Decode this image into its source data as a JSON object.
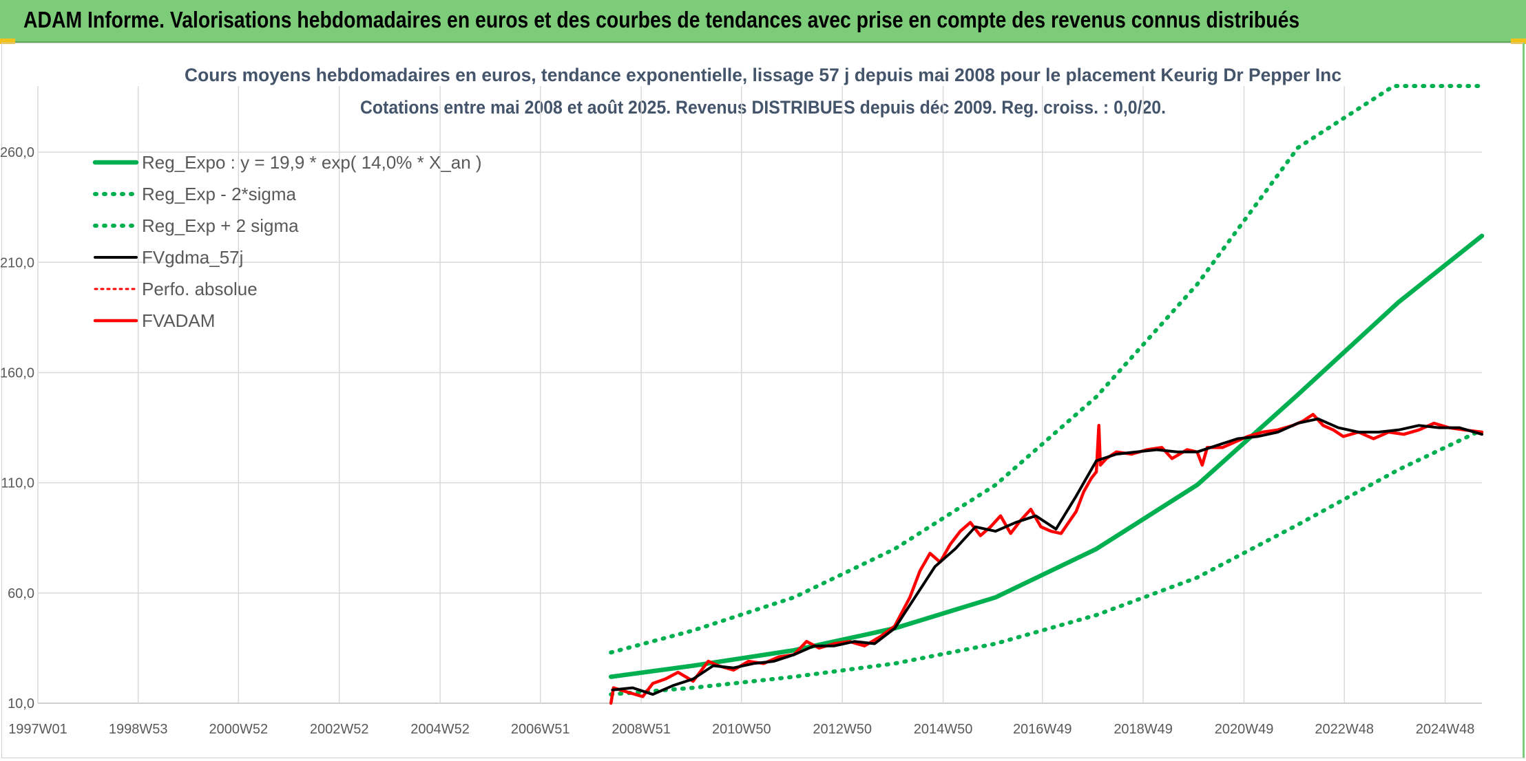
{
  "header": {
    "title": "ADAM Informe. Valorisations hebdomadaires en euros et des courbes de tendances avec prise en compte des revenus connus distribués"
  },
  "chart_data": {
    "type": "line",
    "title": "Cours moyens hebdomadaires en euros, tendance exponentielle, lissage 57 j depuis mai 2008 pour le placement Keurig Dr Pepper Inc",
    "subtitle": "Cotations entre mai 2008 et août 2025. Revenus DISTRIBUES depuis déc 2009. Reg. croiss. : 0,0/20.",
    "xlabel": "",
    "ylabel": "",
    "x_range": [
      1997.0,
      2025.65
    ],
    "ylim": [
      10,
      290
    ],
    "y_ticks": [
      10,
      60,
      110,
      160,
      210,
      260
    ],
    "y_tick_labels": [
      "10,0",
      "60,0",
      "110,0",
      "160,0",
      "210,0",
      "260,0"
    ],
    "x_ticks": [
      1997.0,
      1998.99,
      2000.98,
      2002.98,
      2004.98,
      2006.97,
      2008.97,
      2010.96,
      2012.96,
      2014.96,
      2016.93,
      2018.93,
      2020.93,
      2022.92,
      2024.92
    ],
    "x_tick_labels": [
      "1997W01",
      "1998W53",
      "2000W52",
      "2002W52",
      "2004W52",
      "2006W51",
      "2008W51",
      "2010W50",
      "2012W50",
      "2014W50",
      "2016W49",
      "2018W49",
      "2020W49",
      "2022W48",
      "2024W48"
    ],
    "grid": true,
    "legend_position": "top-left",
    "colors": {
      "trend": "#00b050",
      "adam": "#ff0000",
      "smooth": "#000000"
    },
    "series": [
      {
        "name": "Reg_Expo : y = 19,9 * exp( 14,0% *  X_an )",
        "style": "solid",
        "color": "#00b050",
        "x": [
          2008.37,
          2010,
          2012,
          2014,
          2016,
          2018,
          2020,
          2022,
          2024,
          2025.65
        ],
        "y": [
          22,
          27,
          34,
          44,
          58,
          80,
          109,
          150,
          192,
          222
        ]
      },
      {
        "name": "Reg_Exp - 2*sigma",
        "style": "dotted",
        "color": "#00b050",
        "x": [
          2008.37,
          2010,
          2012,
          2014,
          2016,
          2018,
          2020,
          2022,
          2024,
          2025.65
        ],
        "y": [
          14,
          17,
          22,
          28,
          37,
          50,
          67,
          91,
          116,
          134
        ]
      },
      {
        "name": "Reg_Exp + 2 sigma",
        "style": "dotted",
        "color": "#00b050",
        "x": [
          2008.37,
          2010,
          2012,
          2014,
          2016,
          2018,
          2020,
          2022,
          2023.9,
          2025.65
        ],
        "y": [
          33,
          43,
          58,
          80,
          109,
          149,
          200,
          262,
          290,
          290
        ]
      },
      {
        "name": "FVgdma_57j",
        "style": "solid",
        "color": "#000000",
        "x": [
          2008.4,
          2008.8,
          2009.2,
          2009.6,
          2010.0,
          2010.4,
          2010.8,
          2011.2,
          2011.6,
          2012.0,
          2012.4,
          2012.8,
          2013.2,
          2013.6,
          2014.0,
          2014.4,
          2014.8,
          2015.2,
          2015.6,
          2016.0,
          2016.4,
          2016.8,
          2017.2,
          2017.6,
          2018.0,
          2018.4,
          2018.8,
          2019.2,
          2019.6,
          2020.0,
          2020.4,
          2020.8,
          2021.2,
          2021.6,
          2022.0,
          2022.4,
          2022.8,
          2023.2,
          2023.6,
          2024.0,
          2024.4,
          2024.8,
          2025.2,
          2025.65
        ],
        "y": [
          16,
          17,
          14,
          18,
          21,
          27,
          26,
          28,
          29,
          32,
          36,
          36,
          38,
          37,
          44,
          58,
          72,
          80,
          90,
          88,
          92,
          95,
          89,
          104,
          120,
          123,
          124,
          125,
          124,
          124,
          127,
          130,
          131,
          133,
          137,
          139,
          135,
          133,
          133,
          134,
          136,
          135,
          135,
          132
        ]
      },
      {
        "name": "Perfo. absolue",
        "style": "dotted",
        "color": "#ff0000",
        "x": [
          2008.4,
          2008.8,
          2009.2,
          2009.6,
          2010.0,
          2010.4,
          2010.8,
          2011.2,
          2011.6,
          2012.0,
          2012.4,
          2012.8,
          2013.2,
          2013.6,
          2014.0,
          2014.4,
          2014.8,
          2015.2,
          2015.6,
          2016.0,
          2016.4,
          2016.8,
          2017.2,
          2017.6,
          2018.0,
          2018.4,
          2018.8,
          2019.2,
          2019.6,
          2020.0,
          2020.4,
          2020.8,
          2021.2,
          2021.6,
          2022.0,
          2022.4,
          2022.8,
          2023.2,
          2023.6,
          2024.0,
          2024.4,
          2024.8,
          2025.2,
          2025.65
        ],
        "y": [
          16,
          17,
          14,
          18,
          21,
          27,
          26,
          28,
          29,
          32,
          36,
          36,
          38,
          37,
          44,
          58,
          72,
          80,
          90,
          88,
          92,
          95,
          89,
          104,
          120,
          123,
          124,
          125,
          124,
          124,
          127,
          130,
          131,
          133,
          137,
          139,
          135,
          133,
          133,
          134,
          136,
          135,
          135,
          132
        ]
      },
      {
        "name": "FVADAM",
        "style": "solid",
        "color": "#ff0000",
        "x": [
          2008.37,
          2008.42,
          2008.7,
          2009.0,
          2009.2,
          2009.45,
          2009.7,
          2010.0,
          2010.3,
          2010.5,
          2010.8,
          2011.1,
          2011.4,
          2011.7,
          2012.0,
          2012.25,
          2012.5,
          2012.8,
          2013.1,
          2013.4,
          2013.7,
          2014.0,
          2014.3,
          2014.5,
          2014.7,
          2014.9,
          2015.1,
          2015.3,
          2015.5,
          2015.7,
          2015.9,
          2016.1,
          2016.3,
          2016.5,
          2016.7,
          2016.9,
          2017.1,
          2017.3,
          2017.6,
          2017.75,
          2017.9,
          2018.0,
          2018.05,
          2018.08,
          2018.2,
          2018.4,
          2018.7,
          2019.0,
          2019.3,
          2019.5,
          2019.8,
          2020.0,
          2020.1,
          2020.2,
          2020.5,
          2020.8,
          2021.0,
          2021.3,
          2021.6,
          2021.9,
          2022.1,
          2022.3,
          2022.5,
          2022.7,
          2022.9,
          2023.2,
          2023.5,
          2023.8,
          2024.1,
          2024.4,
          2024.7,
          2025.0,
          2025.3,
          2025.65
        ],
        "y": [
          10,
          17,
          15,
          13,
          19,
          21,
          24,
          20,
          29,
          27,
          25,
          29,
          28,
          31,
          32,
          38,
          35,
          37,
          38,
          36,
          40,
          45,
          58,
          70,
          78,
          74,
          82,
          88,
          92,
          86,
          90,
          95,
          87,
          93,
          98,
          90,
          88,
          87,
          97,
          106,
          112,
          115,
          136,
          118,
          121,
          124,
          123,
          125,
          126,
          121,
          125,
          124,
          118,
          126,
          126,
          129,
          131,
          133,
          134,
          136,
          138,
          141,
          136,
          134,
          131,
          133,
          130,
          133,
          132,
          134,
          137,
          135,
          134,
          133
        ]
      }
    ]
  }
}
